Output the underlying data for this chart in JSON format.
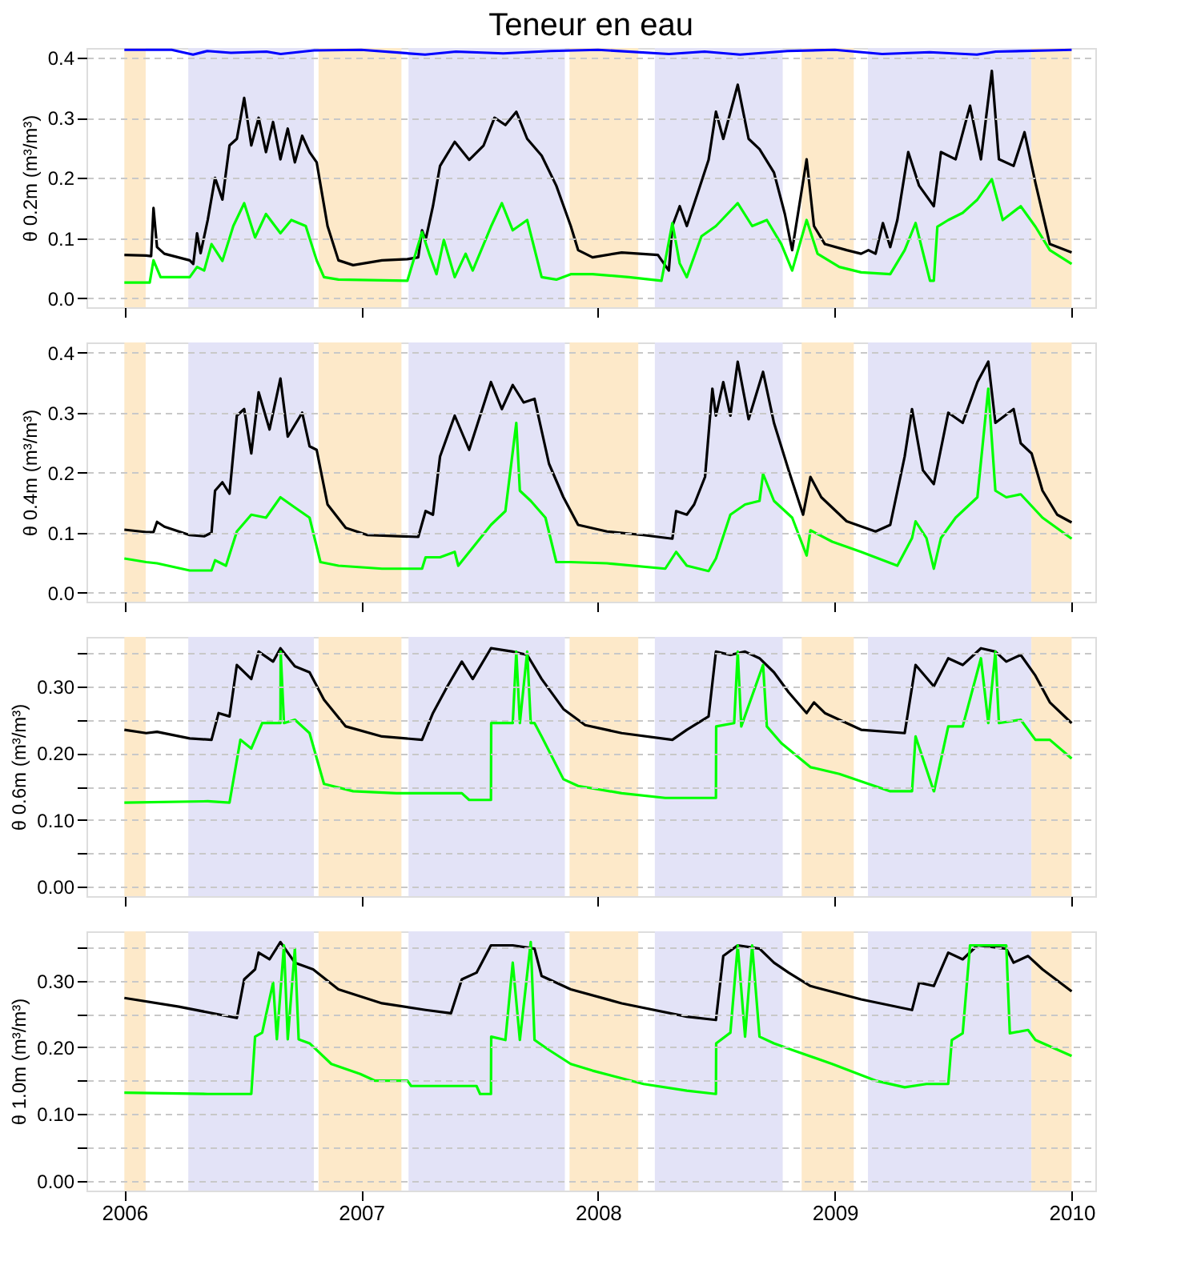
{
  "chart_data": [
    {
      "type": "line",
      "title": "Teneur en eau",
      "ylabel": "θ 0.2m (m³/m³)",
      "xlim": [
        2005.84,
        2010.1
      ],
      "xticks": [
        2006,
        2007,
        2008,
        2009,
        2010
      ],
      "ylim": [
        -0.015,
        0.416
      ],
      "yticks": [
        {
          "value": 0,
          "label": "0.0"
        },
        0.1,
        0.2,
        0.3,
        0.4
      ],
      "grid": "y",
      "tick_labels": "y",
      "bands": [
        {
          "axis": "x",
          "from": 2006.0,
          "to": 2006.09,
          "color": "#fde9c9"
        },
        {
          "axis": "x",
          "from": 2006.27,
          "to": 2006.8,
          "color": "#e3e3f7"
        },
        {
          "axis": "x",
          "from": 2006.82,
          "to": 2007.17,
          "color": "#fde9c9"
        },
        {
          "axis": "x",
          "from": 2007.2,
          "to": 2007.86,
          "color": "#e3e3f7"
        },
        {
          "axis": "x",
          "from": 2007.88,
          "to": 2008.17,
          "color": "#fde9c9"
        },
        {
          "axis": "x",
          "from": 2008.24,
          "to": 2008.78,
          "color": "#e3e3f7"
        },
        {
          "axis": "x",
          "from": 2008.86,
          "to": 2009.08,
          "color": "#fde9c9"
        },
        {
          "axis": "x",
          "from": 2009.14,
          "to": 2009.83,
          "color": "#e3e3f7"
        },
        {
          "axis": "x",
          "from": 2009.83,
          "to": 2010.0,
          "color": "#fde9c9"
        }
      ],
      "series": [
        {
          "color": "#0000ff",
          "x": [
            2006.0,
            2006.2,
            2006.29,
            2006.35,
            2006.45,
            2006.6,
            2006.66,
            2006.8,
            2007.0,
            2007.27,
            2007.4,
            2007.6,
            2007.8,
            2008.0,
            2008.3,
            2008.45,
            2008.6,
            2008.8,
            2009.0,
            2009.2,
            2009.4,
            2009.6,
            2009.68,
            2009.9,
            2010.0
          ],
          "values": [
            0.413,
            0.413,
            0.405,
            0.411,
            0.408,
            0.41,
            0.406,
            0.412,
            0.413,
            0.405,
            0.41,
            0.407,
            0.411,
            0.413,
            0.406,
            0.41,
            0.405,
            0.411,
            0.413,
            0.406,
            0.409,
            0.405,
            0.41,
            0.412,
            0.413
          ]
        },
        {
          "color": "#000000",
          "x": [
            2006.0,
            2006.092,
            2006.113,
            2006.123,
            2006.138,
            2006.169,
            2006.276,
            2006.291,
            2006.307,
            2006.322,
            2006.352,
            2006.383,
            2006.414,
            2006.444,
            2006.475,
            2006.506,
            2006.536,
            2006.567,
            2006.598,
            2006.628,
            2006.659,
            2006.69,
            2006.72,
            2006.751,
            2006.782,
            2006.812,
            2006.858,
            2006.904,
            2006.966,
            2007.088,
            2007.195,
            2007.241,
            2007.257,
            2007.272,
            2007.303,
            2007.333,
            2007.395,
            2007.456,
            2007.517,
            2007.563,
            2007.609,
            2007.655,
            2007.701,
            2007.762,
            2007.824,
            2007.885,
            2007.916,
            2007.977,
            2008.1,
            2008.253,
            2008.299,
            2008.314,
            2008.345,
            2008.375,
            2008.421,
            2008.467,
            2008.498,
            2008.529,
            2008.59,
            2008.636,
            2008.682,
            2008.743,
            2008.789,
            2008.82,
            2008.881,
            2008.912,
            2008.958,
            2009.05,
            2009.111,
            2009.142,
            2009.172,
            2009.203,
            2009.234,
            2009.264,
            2009.31,
            2009.356,
            2009.418,
            2009.448,
            2009.51,
            2009.571,
            2009.617,
            2009.663,
            2009.693,
            2009.755,
            2009.801,
            2009.847,
            2009.908,
            2010.0
          ],
          "values": [
            0.072,
            0.071,
            0.07,
            0.15,
            0.085,
            0.074,
            0.063,
            0.057,
            0.108,
            0.075,
            0.13,
            0.2,
            0.164,
            0.254,
            0.265,
            0.333,
            0.254,
            0.3,
            0.243,
            0.293,
            0.231,
            0.282,
            0.226,
            0.27,
            0.243,
            0.226,
            0.12,
            0.063,
            0.055,
            0.063,
            0.065,
            0.068,
            0.113,
            0.097,
            0.153,
            0.22,
            0.26,
            0.23,
            0.254,
            0.3,
            0.288,
            0.31,
            0.265,
            0.237,
            0.187,
            0.12,
            0.08,
            0.068,
            0.076,
            0.072,
            0.046,
            0.12,
            0.153,
            0.12,
            0.175,
            0.23,
            0.31,
            0.265,
            0.355,
            0.265,
            0.248,
            0.209,
            0.14,
            0.08,
            0.231,
            0.12,
            0.09,
            0.08,
            0.074,
            0.08,
            0.074,
            0.125,
            0.085,
            0.13,
            0.243,
            0.187,
            0.153,
            0.243,
            0.231,
            0.32,
            0.231,
            0.378,
            0.231,
            0.22,
            0.276,
            0.192,
            0.09,
            0.076
          ]
        },
        {
          "color": "#00ff00",
          "x": [
            2006.0,
            2006.107,
            2006.123,
            2006.153,
            2006.276,
            2006.307,
            2006.337,
            2006.368,
            2006.414,
            2006.46,
            2006.506,
            2006.552,
            2006.598,
            2006.659,
            2006.705,
            2006.766,
            2006.812,
            2006.843,
            2006.904,
            2007.195,
            2007.257,
            2007.287,
            2007.318,
            2007.349,
            2007.395,
            2007.441,
            2007.471,
            2007.548,
            2007.594,
            2007.64,
            2007.701,
            2007.762,
            2007.824,
            2007.885,
            2007.977,
            2008.13,
            2008.268,
            2008.314,
            2008.345,
            2008.375,
            2008.437,
            2008.498,
            2008.59,
            2008.651,
            2008.713,
            2008.774,
            2008.82,
            2008.881,
            2008.927,
            2009.019,
            2009.111,
            2009.234,
            2009.295,
            2009.341,
            2009.402,
            2009.418,
            2009.433,
            2009.479,
            2009.54,
            2009.602,
            2009.663,
            2009.709,
            2009.785,
            2009.847,
            2009.908,
            2010.0
          ],
          "values": [
            0.026,
            0.026,
            0.063,
            0.035,
            0.035,
            0.052,
            0.046,
            0.09,
            0.062,
            0.12,
            0.158,
            0.101,
            0.14,
            0.108,
            0.13,
            0.12,
            0.063,
            0.035,
            0.031,
            0.029,
            0.11,
            0.074,
            0.04,
            0.097,
            0.035,
            0.074,
            0.046,
            0.119,
            0.158,
            0.113,
            0.13,
            0.035,
            0.031,
            0.04,
            0.04,
            0.035,
            0.029,
            0.125,
            0.058,
            0.035,
            0.103,
            0.12,
            0.158,
            0.12,
            0.13,
            0.09,
            0.046,
            0.13,
            0.074,
            0.052,
            0.043,
            0.04,
            0.08,
            0.125,
            0.029,
            0.029,
            0.119,
            0.13,
            0.142,
            0.164,
            0.198,
            0.13,
            0.153,
            0.119,
            0.08,
            0.057
          ]
        }
      ]
    },
    {
      "type": "line",
      "ylabel": "θ 0.4m (m³/m³)",
      "xlim": [
        2005.84,
        2010.1
      ],
      "xticks": [
        2006,
        2007,
        2008,
        2009,
        2010
      ],
      "ylim": [
        -0.015,
        0.417
      ],
      "yticks": [
        {
          "value": 0,
          "label": "0.0"
        },
        0.1,
        0.2,
        0.3,
        0.4
      ],
      "grid": "y",
      "tick_labels": "y",
      "bands": [
        {
          "axis": "x",
          "from": 2006.0,
          "to": 2006.09,
          "color": "#fde9c9"
        },
        {
          "axis": "x",
          "from": 2006.27,
          "to": 2006.8,
          "color": "#e3e3f7"
        },
        {
          "axis": "x",
          "from": 2006.82,
          "to": 2007.17,
          "color": "#fde9c9"
        },
        {
          "axis": "x",
          "from": 2007.2,
          "to": 2007.86,
          "color": "#e3e3f7"
        },
        {
          "axis": "x",
          "from": 2007.88,
          "to": 2008.17,
          "color": "#fde9c9"
        },
        {
          "axis": "x",
          "from": 2008.24,
          "to": 2008.78,
          "color": "#e3e3f7"
        },
        {
          "axis": "x",
          "from": 2008.86,
          "to": 2009.08,
          "color": "#fde9c9"
        },
        {
          "axis": "x",
          "from": 2009.14,
          "to": 2009.83,
          "color": "#e3e3f7"
        },
        {
          "axis": "x",
          "from": 2009.83,
          "to": 2010.0,
          "color": "#fde9c9"
        }
      ],
      "series": [
        {
          "color": "#000000",
          "x": [
            2006.0,
            2006.092,
            2006.123,
            2006.138,
            2006.169,
            2006.276,
            2006.337,
            2006.368,
            2006.383,
            2006.414,
            2006.444,
            2006.475,
            2006.506,
            2006.536,
            2006.567,
            2006.613,
            2006.659,
            2006.69,
            2006.751,
            2006.782,
            2006.812,
            2006.858,
            2006.935,
            2007.027,
            2007.241,
            2007.272,
            2007.303,
            2007.333,
            2007.395,
            2007.456,
            2007.548,
            2007.594,
            2007.64,
            2007.686,
            2007.732,
            2007.793,
            2007.854,
            2007.916,
            2008.038,
            2008.192,
            2008.314,
            2008.33,
            2008.375,
            2008.406,
            2008.452,
            2008.483,
            2008.498,
            2008.529,
            2008.559,
            2008.59,
            2008.636,
            2008.697,
            2008.743,
            2008.805,
            2008.866,
            2008.897,
            2008.943,
            2009.05,
            2009.172,
            2009.234,
            2009.295,
            2009.326,
            2009.372,
            2009.418,
            2009.479,
            2009.54,
            2009.602,
            2009.648,
            2009.678,
            2009.755,
            2009.785,
            2009.831,
            2009.877,
            2009.939,
            2010.0
          ],
          "values": [
            0.105,
            0.101,
            0.101,
            0.118,
            0.11,
            0.096,
            0.094,
            0.1,
            0.17,
            0.184,
            0.165,
            0.295,
            0.306,
            0.232,
            0.334,
            0.272,
            0.357,
            0.26,
            0.3,
            0.244,
            0.238,
            0.147,
            0.108,
            0.096,
            0.093,
            0.136,
            0.13,
            0.227,
            0.295,
            0.238,
            0.351,
            0.306,
            0.346,
            0.317,
            0.323,
            0.215,
            0.159,
            0.113,
            0.102,
            0.096,
            0.09,
            0.136,
            0.13,
            0.147,
            0.193,
            0.34,
            0.295,
            0.351,
            0.295,
            0.385,
            0.289,
            0.368,
            0.283,
            0.204,
            0.13,
            0.193,
            0.159,
            0.119,
            0.102,
            0.113,
            0.227,
            0.306,
            0.204,
            0.181,
            0.3,
            0.283,
            0.351,
            0.385,
            0.283,
            0.306,
            0.249,
            0.232,
            0.17,
            0.13,
            0.117
          ]
        },
        {
          "color": "#00ff00",
          "x": [
            2006.0,
            2006.092,
            2006.138,
            2006.276,
            2006.368,
            2006.383,
            2006.429,
            2006.475,
            2006.536,
            2006.598,
            2006.659,
            2006.72,
            2006.782,
            2006.828,
            2006.904,
            2007.088,
            2007.257,
            2007.272,
            2007.333,
            2007.395,
            2007.41,
            2007.548,
            2007.609,
            2007.655,
            2007.67,
            2007.716,
            2007.778,
            2007.824,
            2007.885,
            2008.038,
            2008.284,
            2008.33,
            2008.375,
            2008.467,
            2008.498,
            2008.559,
            2008.621,
            2008.682,
            2008.697,
            2008.743,
            2008.82,
            2008.881,
            2008.897,
            2008.989,
            2009.111,
            2009.264,
            2009.326,
            2009.341,
            2009.387,
            2009.418,
            2009.448,
            2009.51,
            2009.602,
            2009.648,
            2009.678,
            2009.724,
            2009.785,
            2009.877,
            2010.0
          ],
          "values": [
            0.057,
            0.051,
            0.049,
            0.037,
            0.037,
            0.054,
            0.045,
            0.102,
            0.13,
            0.125,
            0.159,
            0.142,
            0.125,
            0.051,
            0.045,
            0.04,
            0.04,
            0.059,
            0.059,
            0.068,
            0.045,
            0.113,
            0.136,
            0.283,
            0.17,
            0.153,
            0.125,
            0.051,
            0.051,
            0.049,
            0.04,
            0.068,
            0.045,
            0.036,
            0.057,
            0.13,
            0.147,
            0.153,
            0.198,
            0.153,
            0.125,
            0.062,
            0.104,
            0.085,
            0.068,
            0.045,
            0.091,
            0.119,
            0.091,
            0.04,
            0.091,
            0.125,
            0.159,
            0.34,
            0.17,
            0.159,
            0.164,
            0.125,
            0.09
          ]
        }
      ]
    },
    {
      "type": "line",
      "ylabel": "θ 0.6m (m³/m³)",
      "xlim": [
        2005.84,
        2010.1
      ],
      "xticks": [
        2006,
        2007,
        2008,
        2009,
        2010
      ],
      "ylim": [
        -0.014,
        0.374
      ],
      "yticks": [
        {
          "value": 0,
          "label": "0.00"
        },
        {
          "value": 0.05,
          "label": null
        },
        {
          "value": 0.1,
          "label": "0.10"
        },
        {
          "value": 0.15,
          "label": null
        },
        {
          "value": 0.2,
          "label": "0.20"
        },
        {
          "value": 0.25,
          "label": null
        },
        {
          "value": 0.3,
          "label": "0.30"
        },
        {
          "value": 0.35,
          "label": null
        }
      ],
      "grid": "y",
      "tick_labels": "y",
      "bands": [
        {
          "axis": "x",
          "from": 2006.0,
          "to": 2006.09,
          "color": "#fde9c9"
        },
        {
          "axis": "x",
          "from": 2006.27,
          "to": 2006.8,
          "color": "#e3e3f7"
        },
        {
          "axis": "x",
          "from": 2006.82,
          "to": 2007.17,
          "color": "#fde9c9"
        },
        {
          "axis": "x",
          "from": 2007.2,
          "to": 2007.86,
          "color": "#e3e3f7"
        },
        {
          "axis": "x",
          "from": 2007.88,
          "to": 2008.17,
          "color": "#fde9c9"
        },
        {
          "axis": "x",
          "from": 2008.24,
          "to": 2008.78,
          "color": "#e3e3f7"
        },
        {
          "axis": "x",
          "from": 2008.86,
          "to": 2009.08,
          "color": "#fde9c9"
        },
        {
          "axis": "x",
          "from": 2009.14,
          "to": 2009.83,
          "color": "#e3e3f7"
        },
        {
          "axis": "x",
          "from": 2009.83,
          "to": 2010.0,
          "color": "#fde9c9"
        }
      ],
      "series": [
        {
          "color": "#000000",
          "x": [
            2006.0,
            2006.092,
            2006.138,
            2006.276,
            2006.368,
            2006.398,
            2006.444,
            2006.475,
            2006.536,
            2006.567,
            2006.628,
            2006.659,
            2006.72,
            2006.782,
            2006.843,
            2006.935,
            2007.088,
            2007.257,
            2007.303,
            2007.364,
            2007.425,
            2007.471,
            2007.548,
            2007.64,
            2007.701,
            2007.762,
            2007.854,
            2007.946,
            2008.1,
            2008.314,
            2008.375,
            2008.467,
            2008.498,
            2008.559,
            2008.621,
            2008.682,
            2008.743,
            2008.805,
            2008.881,
            2008.912,
            2008.958,
            2009.111,
            2009.295,
            2009.341,
            2009.418,
            2009.479,
            2009.54,
            2009.617,
            2009.678,
            2009.724,
            2009.785,
            2009.847,
            2009.908,
            2010.0
          ],
          "values": [
            0.235,
            0.23,
            0.232,
            0.222,
            0.22,
            0.26,
            0.255,
            0.332,
            0.311,
            0.352,
            0.337,
            0.357,
            0.33,
            0.321,
            0.28,
            0.24,
            0.225,
            0.22,
            0.26,
            0.3,
            0.337,
            0.311,
            0.357,
            0.352,
            0.347,
            0.311,
            0.266,
            0.242,
            0.23,
            0.22,
            0.235,
            0.255,
            0.352,
            0.347,
            0.352,
            0.342,
            0.321,
            0.291,
            0.26,
            0.276,
            0.26,
            0.235,
            0.23,
            0.332,
            0.3,
            0.342,
            0.332,
            0.357,
            0.352,
            0.337,
            0.347,
            0.316,
            0.276,
            0.245
          ]
        },
        {
          "color": "#00ff00",
          "x": [
            2006.0,
            2006.352,
            2006.444,
            2006.49,
            2006.536,
            2006.582,
            2006.659,
            2006.66,
            2006.674,
            2006.72,
            2006.782,
            2006.843,
            2006.966,
            2007.149,
            2007.425,
            2007.456,
            2007.548,
            2007.549,
            2007.64,
            2007.655,
            2007.67,
            2007.701,
            2007.716,
            2007.732,
            2007.762,
            2007.854,
            2007.916,
            2008.1,
            2008.284,
            2008.498,
            2008.499,
            2008.575,
            2008.59,
            2008.605,
            2008.697,
            2008.713,
            2008.774,
            2008.897,
            2009.019,
            2009.234,
            2009.326,
            2009.341,
            2009.418,
            2009.419,
            2009.479,
            2009.54,
            2009.617,
            2009.648,
            2009.678,
            2009.693,
            2009.785,
            2009.847,
            2009.908,
            2010.0
          ],
          "values": [
            0.126,
            0.128,
            0.126,
            0.22,
            0.207,
            0.245,
            0.245,
            0.352,
            0.245,
            0.25,
            0.23,
            0.154,
            0.143,
            0.14,
            0.14,
            0.13,
            0.13,
            0.245,
            0.245,
            0.352,
            0.245,
            0.352,
            0.245,
            0.245,
            0.225,
            0.161,
            0.151,
            0.14,
            0.133,
            0.133,
            0.24,
            0.245,
            0.352,
            0.24,
            0.332,
            0.24,
            0.215,
            0.179,
            0.169,
            0.143,
            0.143,
            0.225,
            0.143,
            0.143,
            0.24,
            0.24,
            0.342,
            0.245,
            0.352,
            0.245,
            0.25,
            0.22,
            0.22,
            0.192
          ]
        }
      ]
    },
    {
      "type": "line",
      "ylabel": "θ 1.0m (m³/m³)",
      "xlim": [
        2005.84,
        2010.1
      ],
      "xticks": [
        2006,
        2007,
        2008,
        2009,
        2010
      ],
      "ylim": [
        -0.015,
        0.374
      ],
      "yticks": [
        {
          "value": 0,
          "label": "0.00"
        },
        {
          "value": 0.05,
          "label": null
        },
        {
          "value": 0.1,
          "label": "0.10"
        },
        {
          "value": 0.15,
          "label": null
        },
        {
          "value": 0.2,
          "label": "0.20"
        },
        {
          "value": 0.25,
          "label": null
        },
        {
          "value": 0.3,
          "label": "0.30"
        },
        {
          "value": 0.35,
          "label": null
        }
      ],
      "grid": "y",
      "bands": [
        {
          "axis": "x",
          "from": 2006.0,
          "to": 2006.09,
          "color": "#fde9c9"
        },
        {
          "axis": "x",
          "from": 2006.27,
          "to": 2006.8,
          "color": "#e3e3f7"
        },
        {
          "axis": "x",
          "from": 2006.82,
          "to": 2007.17,
          "color": "#fde9c9"
        },
        {
          "axis": "x",
          "from": 2007.2,
          "to": 2007.86,
          "color": "#e3e3f7"
        },
        {
          "axis": "x",
          "from": 2007.88,
          "to": 2008.17,
          "color": "#fde9c9"
        },
        {
          "axis": "x",
          "from": 2008.24,
          "to": 2008.78,
          "color": "#e3e3f7"
        },
        {
          "axis": "x",
          "from": 2008.86,
          "to": 2009.08,
          "color": "#fde9c9"
        },
        {
          "axis": "x",
          "from": 2009.14,
          "to": 2009.83,
          "color": "#e3e3f7"
        },
        {
          "axis": "x",
          "from": 2009.83,
          "to": 2010.0,
          "color": "#fde9c9"
        }
      ],
      "series": [
        {
          "color": "#000000",
          "x": [
            2006.0,
            2006.23,
            2006.475,
            2006.506,
            2006.552,
            2006.567,
            2006.613,
            2006.659,
            2006.72,
            2006.797,
            2006.904,
            2007.088,
            2007.272,
            2007.379,
            2007.425,
            2007.487,
            2007.548,
            2007.64,
            2007.732,
            2007.762,
            2007.885,
            2008.1,
            2008.375,
            2008.498,
            2008.529,
            2008.59,
            2008.682,
            2008.743,
            2008.805,
            2008.897,
            2009.111,
            2009.326,
            2009.356,
            2009.418,
            2009.479,
            2009.54,
            2009.602,
            2009.724,
            2009.755,
            2009.816,
            2009.877,
            2010.0
          ],
          "values": [
            0.274,
            0.261,
            0.244,
            0.302,
            0.317,
            0.342,
            0.332,
            0.358,
            0.327,
            0.317,
            0.287,
            0.266,
            0.256,
            0.251,
            0.302,
            0.312,
            0.353,
            0.353,
            0.348,
            0.307,
            0.287,
            0.266,
            0.246,
            0.241,
            0.337,
            0.353,
            0.348,
            0.327,
            0.312,
            0.292,
            0.272,
            0.256,
            0.297,
            0.292,
            0.342,
            0.332,
            0.353,
            0.348,
            0.327,
            0.337,
            0.317,
            0.284
          ]
        },
        {
          "color": "#00ff00",
          "x": [
            2006.0,
            2006.352,
            2006.536,
            2006.552,
            2006.582,
            2006.628,
            2006.644,
            2006.674,
            2006.69,
            2006.72,
            2006.736,
            2006.782,
            2006.874,
            2006.996,
            2007.057,
            2007.195,
            2007.211,
            2007.487,
            2007.502,
            2007.548,
            2007.549,
            2007.609,
            2007.64,
            2007.67,
            2007.716,
            2007.732,
            2007.793,
            2007.885,
            2007.977,
            2008.192,
            2008.375,
            2008.498,
            2008.499,
            2008.559,
            2008.59,
            2008.621,
            2008.651,
            2008.682,
            2008.743,
            2008.82,
            2008.989,
            2009.172,
            2009.295,
            2009.387,
            2009.479,
            2009.494,
            2009.54,
            2009.571,
            2009.724,
            2009.739,
            2009.816,
            2009.847,
            2010.0
          ],
          "values": [
            0.132,
            0.13,
            0.13,
            0.216,
            0.222,
            0.297,
            0.212,
            0.353,
            0.212,
            0.348,
            0.212,
            0.206,
            0.175,
            0.16,
            0.15,
            0.15,
            0.142,
            0.142,
            0.13,
            0.13,
            0.216,
            0.211,
            0.327,
            0.211,
            0.358,
            0.211,
            0.196,
            0.175,
            0.165,
            0.145,
            0.135,
            0.13,
            0.206,
            0.222,
            0.353,
            0.216,
            0.353,
            0.216,
            0.206,
            0.196,
            0.175,
            0.15,
            0.14,
            0.145,
            0.145,
            0.211,
            0.221,
            0.353,
            0.353,
            0.221,
            0.226,
            0.211,
            0.187
          ]
        }
      ]
    }
  ]
}
